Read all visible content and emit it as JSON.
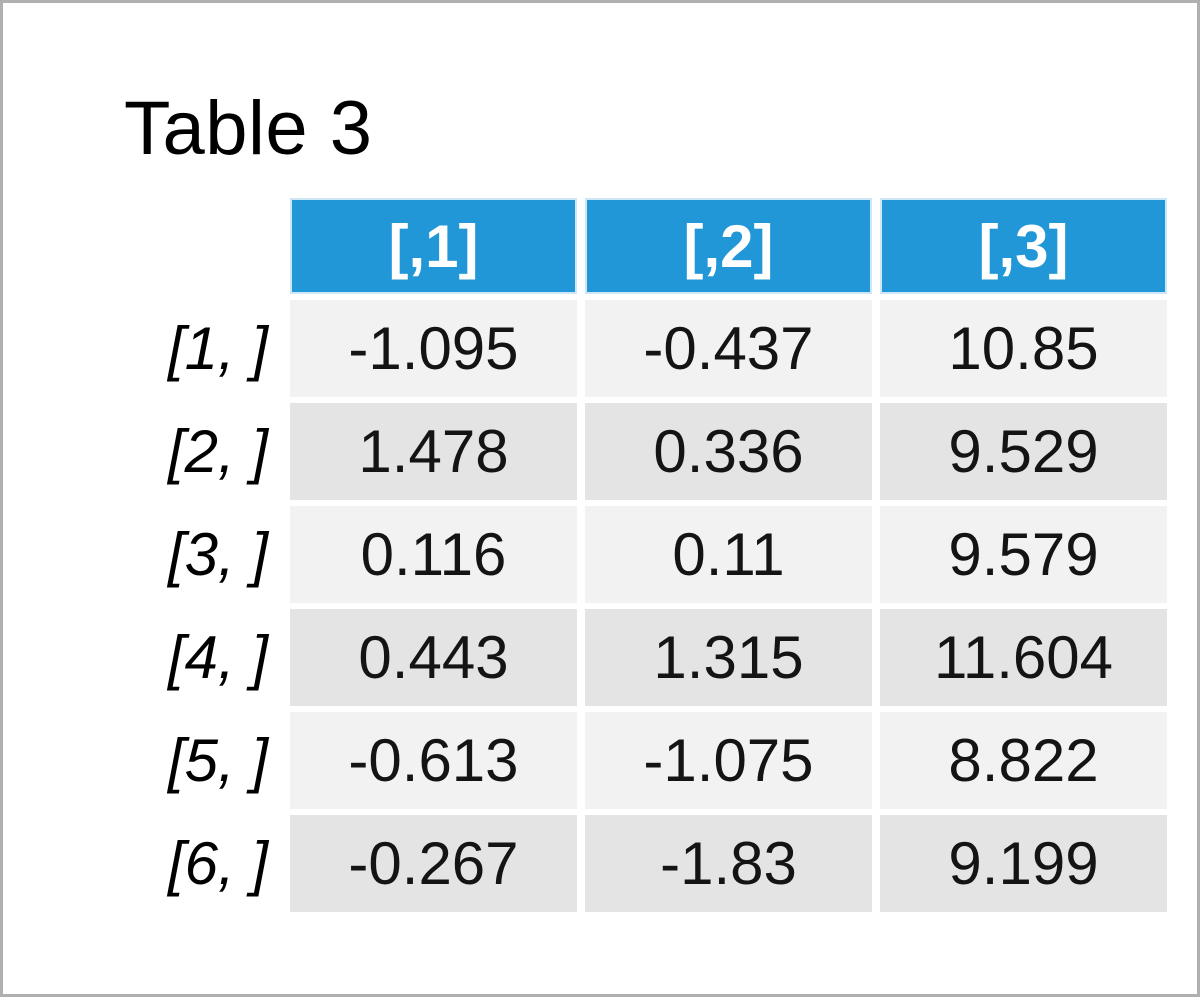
{
  "page": {
    "title": "Table 3"
  },
  "chart_data": {
    "type": "table",
    "title": "Table 3",
    "columns": [
      "[,1]",
      "[,2]",
      "[,3]"
    ],
    "row_labels": [
      "[1, ]",
      "[2, ]",
      "[3, ]",
      "[4, ]",
      "[5, ]",
      "[6, ]"
    ],
    "rows": [
      [
        -1.095,
        -0.437,
        10.85
      ],
      [
        1.478,
        0.336,
        9.529
      ],
      [
        0.116,
        0.11,
        9.579
      ],
      [
        0.443,
        1.315,
        11.604
      ],
      [
        -0.613,
        -1.075,
        8.822
      ],
      [
        -0.267,
        -1.83,
        9.199
      ]
    ],
    "layout_hints": {
      "header_position": "top",
      "row_labels_position": "left",
      "zebra_striping": true
    }
  },
  "colors": {
    "header_bg": "#2297d8",
    "header_border": "#cde7f6",
    "header_text": "#ffffff",
    "row_odd_bg": "#f2f2f2",
    "row_even_bg": "#e4e4e4",
    "frame_border": "#b0b0b0",
    "text": "#000000"
  }
}
